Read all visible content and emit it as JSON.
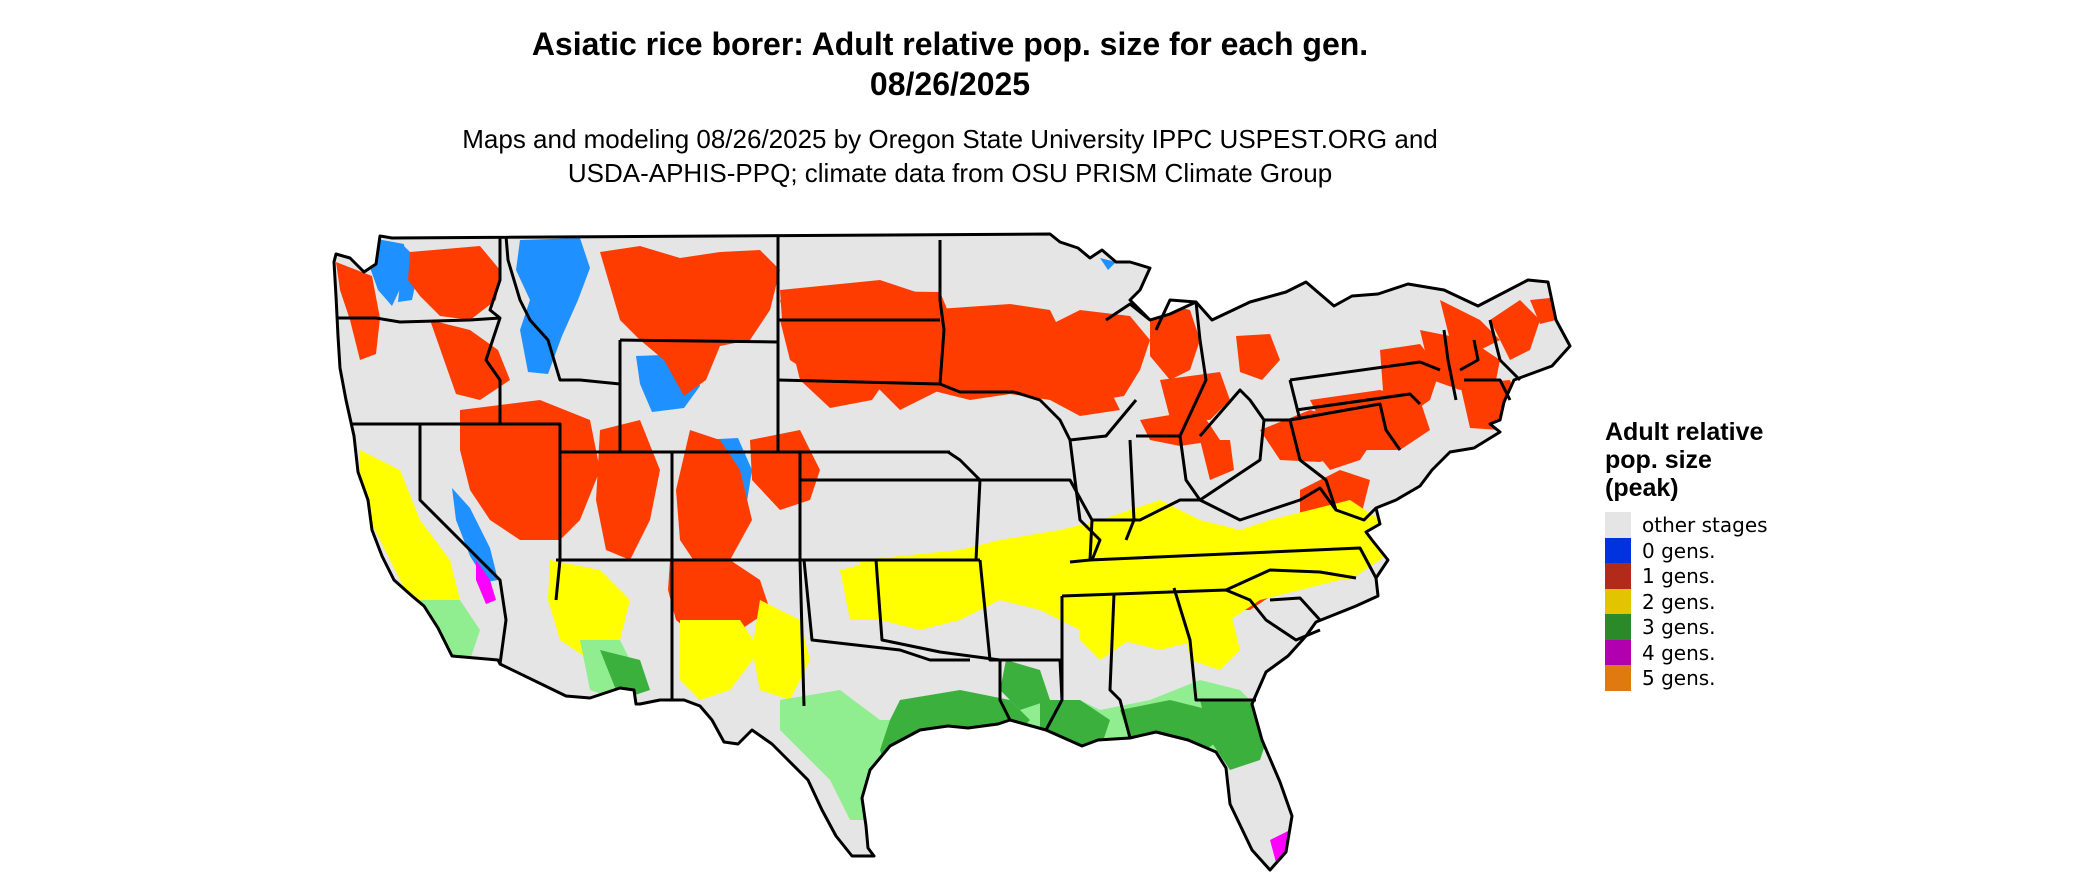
{
  "title": {
    "line1": "Asiatic rice borer: Adult relative pop. size for each gen.",
    "line2": "08/26/2025"
  },
  "subtitle": {
    "line1": "Maps and modeling 08/26/2025 by Oregon State University IPPC USPEST.ORG and",
    "line2": "USDA-APHIS-PPQ; climate data from OSU PRISM Climate Group"
  },
  "legend": {
    "title_lines": [
      "Adult relative",
      "pop. size",
      "(peak)"
    ],
    "items": [
      {
        "label": "other stages",
        "color": "#e5e5e5"
      },
      {
        "label": "0 gens.",
        "color": "#0033dd"
      },
      {
        "label": "1 gens.",
        "color": "#b22a1a"
      },
      {
        "label": "2 gens.",
        "color": "#e3c400"
      },
      {
        "label": "3 gens.",
        "color": "#2a8a2a"
      },
      {
        "label": "4 gens.",
        "color": "#b000b0"
      },
      {
        "label": "5 gens.",
        "color": "#e07a10"
      }
    ]
  },
  "map_colors": {
    "background": "#e5e5e5",
    "border": "#000000",
    "zero_gen": "#1e90ff",
    "one_gen": "#ff3c00",
    "two_gen": "#ffff00",
    "three_gen": "#3cb03c",
    "three_gen_light": "#90ee90",
    "four_gen": "#ff00ff"
  }
}
